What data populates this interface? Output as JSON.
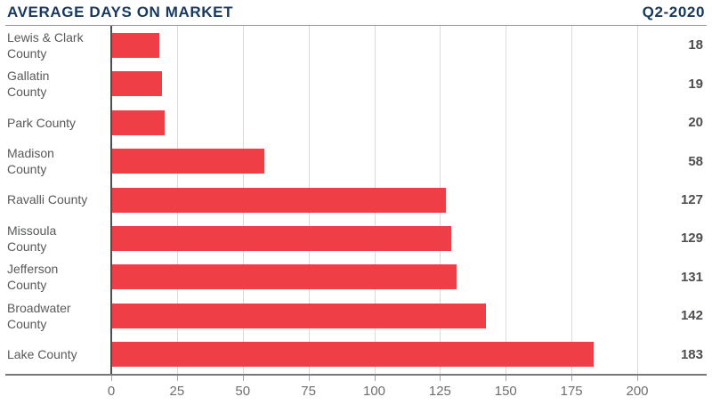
{
  "header": {
    "title": "AVERAGE DAYS ON MARKET",
    "period": "Q2-2020"
  },
  "colors": {
    "title": "#17395F",
    "bar": "#EF3E46",
    "category_label": "#58595B",
    "value_label": "#4D4E50",
    "tick_label": "#6D6E71",
    "gridline": "#D9DADC",
    "axis_line": "#77787B",
    "zero_line": "#4D4E50",
    "background": "#FFFFFF"
  },
  "chart_data": {
    "type": "bar",
    "orientation": "horizontal",
    "title": "AVERAGE DAYS ON MARKET",
    "subtitle": "Q2-2020",
    "categories": [
      "Lewis & Clark County",
      "Gallatin County",
      "Park County",
      "Madison County",
      "Ravalli County",
      "Missoula County",
      "Jefferson County",
      "Broadwater County",
      "Lake County"
    ],
    "display_labels": [
      "Lewis & Clark\nCounty",
      "Gallatin\nCounty",
      "Park County",
      "Madison\nCounty",
      "Ravalli County",
      "Missoula\nCounty",
      "Jefferson\nCounty",
      "Broadwater\nCounty",
      "Lake County"
    ],
    "values": [
      18,
      19,
      20,
      58,
      127,
      129,
      131,
      142,
      183
    ],
    "value_labels": [
      "18",
      "19",
      "20",
      "58",
      "127",
      "129",
      "131",
      "142",
      "183"
    ],
    "xlabel": "",
    "ylabel": "",
    "xlim": [
      0,
      200
    ],
    "x_ticks": [
      0,
      25,
      50,
      75,
      100,
      125,
      150,
      175,
      200
    ],
    "grid": true,
    "legend": false
  }
}
